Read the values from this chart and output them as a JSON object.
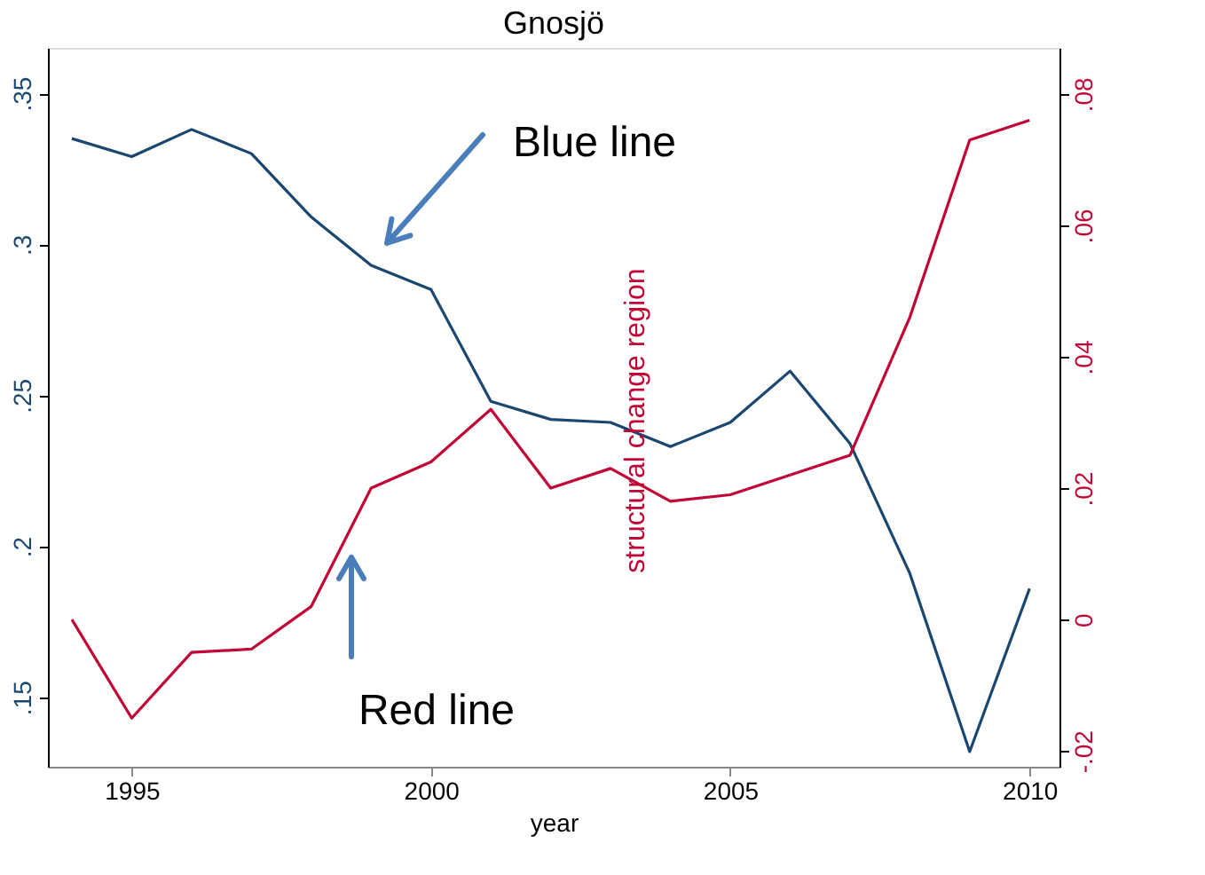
{
  "chart_data": {
    "type": "line",
    "title": "Gnosjö",
    "xlabel": "year",
    "x": [
      1994,
      1995,
      1996,
      1997,
      1998,
      1999,
      2000,
      2001,
      2002,
      2003,
      2004,
      2005,
      2006,
      2007,
      2008,
      2009,
      2010
    ],
    "series": [
      {
        "color": "#1a476f",
        "values": [
          0.335,
          0.329,
          0.338,
          0.33,
          0.309,
          0.293,
          0.285,
          0.248,
          0.242,
          0.241,
          0.233,
          0.241,
          0.258,
          0.234,
          0.191,
          0.132,
          0.186
        ]
      },
      {
        "color": "#c10534",
        "axis": "y2",
        "values": [
          0.0,
          -0.015,
          -0.005,
          -0.0045,
          0.002,
          0.02,
          0.024,
          0.032,
          0.02,
          0.023,
          0.018,
          0.019,
          0.022,
          0.025,
          0.046,
          0.073,
          0.076
        ]
      }
    ],
    "xlim": [
      1993.6,
      2010.5
    ],
    "xticks": [
      1995,
      2000,
      2005,
      2010
    ],
    "ylim": [
      0.127,
      0.365
    ],
    "yticks": [
      {
        "value": 0.15,
        "label": ".15"
      },
      {
        "value": 0.2,
        "label": ".2"
      },
      {
        "value": 0.25,
        "label": ".25"
      },
      {
        "value": 0.3,
        "label": ".3"
      },
      {
        "value": 0.35,
        "label": ".35"
      }
    ],
    "y2lim": [
      -0.0224,
      0.087
    ],
    "y2ticks": [
      {
        "value": -0.02,
        "label": "-.02"
      },
      0,
      {
        "value": 0.02,
        "label": ".02"
      },
      {
        "value": 0.04,
        "label": ".04"
      },
      {
        "value": 0.06,
        "label": ".06"
      },
      {
        "value": 0.08,
        "label": ".08"
      }
    ],
    "annotations": [
      "Blue line",
      "Red line",
      "structural change region"
    ],
    "grid": false,
    "marker": "none",
    "line_style": "solid"
  }
}
